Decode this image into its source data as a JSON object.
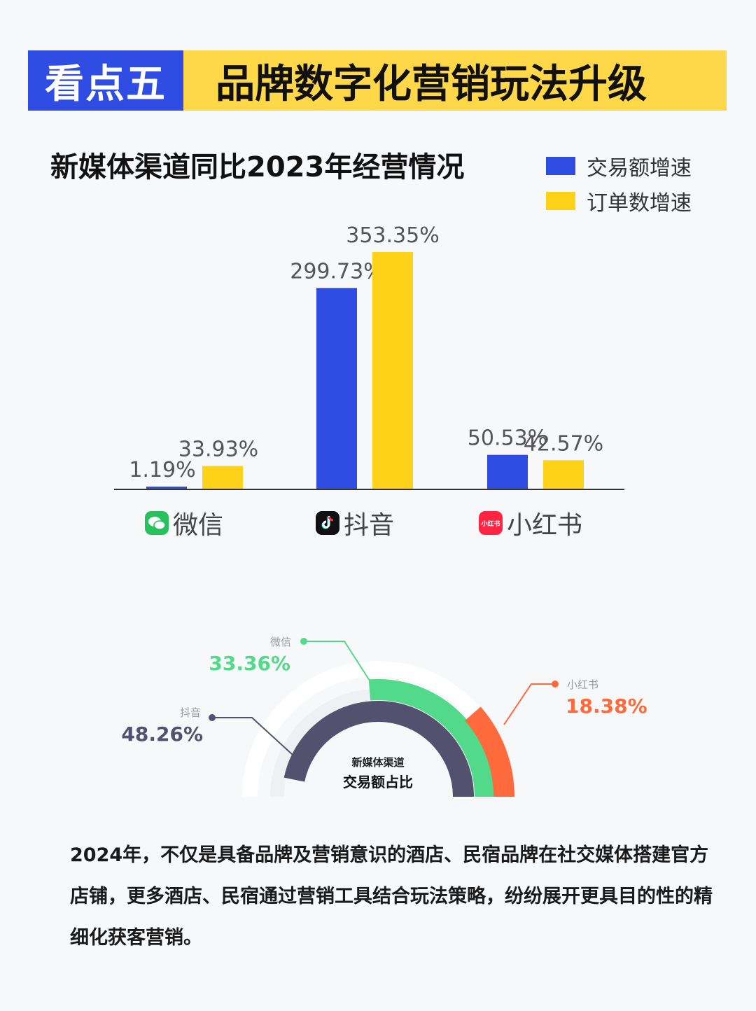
{
  "banner": {
    "tag": "看点五",
    "title": "品牌数字化营销玩法升级"
  },
  "colors": {
    "blue": "#2f4de3",
    "yellow": "#ffd21a",
    "green": "#52d98a",
    "dark": "#52526e",
    "orange": "#ff6a3d"
  },
  "chart_data": [
    {
      "type": "bar",
      "title": "新媒体渠道同比2023年经营情况",
      "categories": [
        "微信",
        "抖音",
        "小红书"
      ],
      "series": [
        {
          "name": "交易额增速",
          "values": [
            1.19,
            299.73,
            50.53
          ],
          "labels": [
            "1.19%",
            "299.73%",
            "50.53%"
          ]
        },
        {
          "name": "订单数增速",
          "values": [
            33.93,
            353.35,
            42.57
          ],
          "labels": [
            "33.93%",
            "353.35%",
            "42.57%"
          ]
        }
      ],
      "ylim": [
        0,
        353.35
      ],
      "legend": "top-right",
      "grid": false
    },
    {
      "type": "pie",
      "title": "新媒体渠道",
      "subtitle": "交易额占比",
      "categories": [
        "抖音",
        "微信",
        "小红书"
      ],
      "values": [
        48.26,
        33.36,
        18.38
      ],
      "labels": [
        "48.26%",
        "33.36%",
        "18.38%"
      ]
    }
  ],
  "category_icons": [
    "wechat-icon",
    "douyin-icon",
    "xiaohongshu-icon"
  ],
  "xhs_icon_text": "小红书",
  "paragraph": "2024年，不仅是具备品牌及营销意识的酒店、民宿品牌在社交媒体搭建官方店铺，更多酒店、民宿通过营销工具结合玩法策略，纷纷展开更具目的性的精细化获客营销。"
}
